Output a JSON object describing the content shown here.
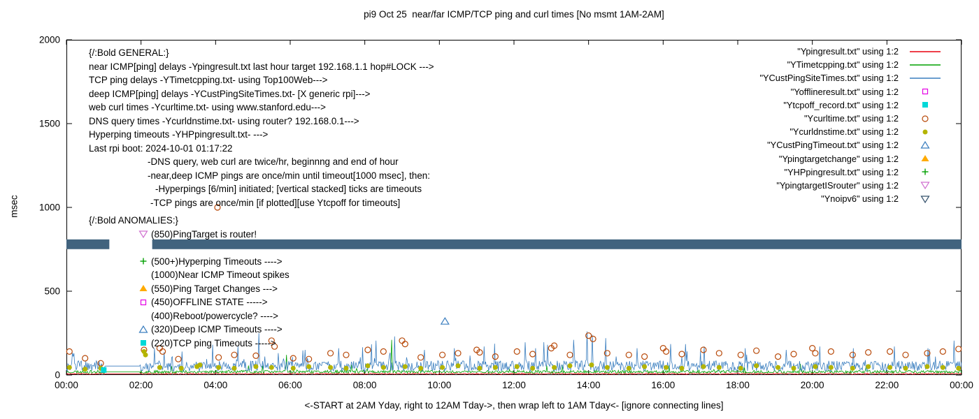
{
  "title": "pi9 Oct 25  near/far ICMP/TCP ping and curl times [No msmt 1AM-2AM]",
  "ylabel": "msec",
  "xlabel": "<-START at 2AM Yday, right to 12AM Tday->, then wrap left to 1AM Tday<- [ignore connecting lines]",
  "legend": [
    {
      "label": "\"Ypingresult.txt\" using 1:2",
      "marker": "line",
      "color": "#e8000e"
    },
    {
      "label": "\"YTimetcpping.txt\" using 1:2",
      "marker": "line",
      "color": "#00a000"
    },
    {
      "label": "\"YCustPingSiteTimes.txt\" using 1:2",
      "marker": "line",
      "color": "#3a7ebf"
    },
    {
      "label": "\"Yofflineresult.txt\" using 1:2",
      "marker": "square-open",
      "color": "#e400e4"
    },
    {
      "label": "\"Ytcpoff_record.txt\" using 1:2",
      "marker": "square-filled",
      "color": "#00d8d8"
    },
    {
      "label": "\"Ycurltime.txt\" using 1:2",
      "marker": "circle-open",
      "color": "#b84a0a"
    },
    {
      "label": "\"Ycurldnstime.txt\" using 1:2",
      "marker": "circle-filled",
      "color": "#b4b400"
    },
    {
      "label": "\"YCustPingTimeout.txt\" using 1:2",
      "marker": "triangle-open",
      "color": "#3a7ebf"
    },
    {
      "label": "\"Ypingtargetchange\" using 1:2",
      "marker": "triangle-filled",
      "color": "#ffaa00"
    },
    {
      "label": "\"YHPpingresult.txt\" using 1:2",
      "marker": "plus",
      "color": "#00a000"
    },
    {
      "label": "\"YpingtargetISrouter\" using 1:2",
      "marker": "nabla-open",
      "color": "#d070d0"
    },
    {
      "label": "\"Ynoipv6\" using 1:2",
      "marker": "nabla-open",
      "color": "#33506b"
    }
  ],
  "general": {
    "lines": [
      {
        "text": "{/:Bold GENERAL:}",
        "indent": 0
      },
      {
        "text": "near ICMP[ping] delays -Ypingresult.txt last hour target 192.168.1.1 hop#LOCK --->",
        "indent": 0
      },
      {
        "text": "TCP ping delays -YTimetcpping.txt- using Top100Web--->",
        "indent": 0
      },
      {
        "text": "deep ICMP[ping] delays -YCustPingSiteTimes.txt- [X generic rpi]--->",
        "indent": 0
      },
      {
        "text": "web curl times -Ycurltime.txt- using www.stanford.edu--->",
        "indent": 0
      },
      {
        "text": "DNS query times -Ycurldnstime.txt- using router? 192.168.0.1--->",
        "indent": 0
      },
      {
        "text": "Hyperping timeouts -YHPpingresult.txt- --->",
        "indent": 0
      },
      {
        "text": "Last rpi boot: 2024-10-01 01:17:22",
        "indent": 0
      },
      {
        "text": "-DNS query, web curl are twice/hr, beginnng and end of hour",
        "indent": 84
      },
      {
        "text": "-near,deep ICMP pings are once/min until timeout[1000 msec], then:",
        "indent": 84
      },
      {
        "text": "-Hyperpings [6/min] initiated; [vertical stacked] ticks are timeouts",
        "indent": 95
      },
      {
        "text": "-TCP pings are once/min [if plotted][use Ytcpoff for timeouts]",
        "indent": 88
      }
    ]
  },
  "anomalies": {
    "header": "{/:Bold ANOMALIES:}",
    "items": [
      {
        "marker": "nabla-open",
        "color": "#d070d0",
        "text": "(850)PingTarget is router!"
      },
      {
        "marker": null,
        "color": null,
        "text": ""
      },
      {
        "marker": "plus",
        "color": "#00a000",
        "text": "(500+)Hyperping Timeouts ---->"
      },
      {
        "marker": null,
        "color": null,
        "text": "(1000)Near ICMP Timeout spikes"
      },
      {
        "marker": "triangle-filled",
        "color": "#ffaa00",
        "text": "(550)Ping Target Changes --->"
      },
      {
        "marker": "square-open",
        "color": "#e400e4",
        "text": "(450)OFFLINE STATE ----->"
      },
      {
        "marker": null,
        "color": null,
        "text": "(400)Reboot/powercycle? ---->"
      },
      {
        "marker": "triangle-open",
        "color": "#3a7ebf",
        "text": "(320)Deep ICMP Timeouts ---->"
      },
      {
        "marker": "square-filled",
        "color": "#00d8d8",
        "text": "(220)TCP ping Timeouts ----->"
      }
    ]
  },
  "chart_data": {
    "type": "mixed-line-scatter",
    "xlim": [
      0,
      24
    ],
    "ylim": [
      0,
      2000
    ],
    "x_tick_step_hours": 2,
    "x_tick_labels": [
      "00:00",
      "02:00",
      "04:00",
      "06:00",
      "08:00",
      "10:00",
      "12:00",
      "14:00",
      "16:00",
      "18:00",
      "20:00",
      "22:00",
      "00:00"
    ],
    "y_ticks": [
      0,
      500,
      1000,
      1500,
      2000
    ],
    "grid": false,
    "legend_position": "top-right",
    "band": {
      "name": "Ynoipv6",
      "y_msec": 780,
      "thickness_msec": 58,
      "segments_hours": [
        [
          0,
          1.15
        ],
        [
          2.3,
          24
        ]
      ],
      "color": "#41637e"
    },
    "lines": [
      {
        "name": "Ypingresult.txt",
        "color": "#e8000e",
        "seed": 11,
        "base": [
          3,
          12
        ],
        "burst_p": 0.01,
        "burst_mul": 1.2,
        "spikes": []
      },
      {
        "name": "YTimetcpping.txt",
        "color": "#00a000",
        "seed": 23,
        "base": [
          10,
          28
        ],
        "burst_p": 0.02,
        "burst_mul": 1.5,
        "spikes": [
          [
            8.72,
            210
          ],
          [
            5.9,
            120
          ]
        ]
      },
      {
        "name": "YCustPingSiteTimes.txt",
        "color": "#3a7ebf",
        "seed": 47,
        "base": [
          22,
          85
        ],
        "burst_p": 0.06,
        "burst_mul": 1.6,
        "spikes": [
          [
            0.2,
            130
          ],
          [
            2.35,
            160
          ],
          [
            3.1,
            140
          ],
          [
            4.6,
            170
          ],
          [
            5.15,
            250
          ],
          [
            6.4,
            150
          ],
          [
            7.3,
            160
          ],
          [
            8.3,
            205
          ],
          [
            8.8,
            230
          ],
          [
            9.6,
            150
          ],
          [
            10.4,
            160
          ],
          [
            11.2,
            170
          ],
          [
            12.3,
            195
          ],
          [
            12.9,
            180
          ],
          [
            13.6,
            210
          ],
          [
            13.95,
            260
          ],
          [
            14.1,
            240
          ],
          [
            14.45,
            220
          ],
          [
            15.3,
            160
          ],
          [
            16.2,
            185
          ],
          [
            17.1,
            170
          ],
          [
            18.2,
            160
          ],
          [
            19.3,
            150
          ],
          [
            20.2,
            170
          ],
          [
            21.1,
            160
          ],
          [
            22.2,
            170
          ],
          [
            23.1,
            160
          ],
          [
            23.8,
            205
          ]
        ]
      }
    ],
    "scatters": [
      {
        "name": "Ycurltime.txt",
        "marker": "circle-open",
        "color": "#b84a0a",
        "points": [
          [
            0.08,
            140
          ],
          [
            0.5,
            100
          ],
          [
            0.92,
            70
          ],
          [
            2.08,
            150
          ],
          [
            2.5,
            160
          ],
          [
            2.58,
            140
          ],
          [
            3.0,
            95
          ],
          [
            4.05,
            1000
          ],
          [
            4.08,
            105
          ],
          [
            4.5,
            120
          ],
          [
            5.08,
            115
          ],
          [
            5.5,
            205
          ],
          [
            5.58,
            170
          ],
          [
            6.08,
            100
          ],
          [
            6.5,
            95
          ],
          [
            7.08,
            130
          ],
          [
            7.5,
            120
          ],
          [
            8.08,
            150
          ],
          [
            8.5,
            140
          ],
          [
            9.0,
            205
          ],
          [
            9.08,
            185
          ],
          [
            9.5,
            105
          ],
          [
            10.08,
            120
          ],
          [
            10.5,
            130
          ],
          [
            11.0,
            150
          ],
          [
            11.08,
            135
          ],
          [
            11.5,
            110
          ],
          [
            12.08,
            140
          ],
          [
            12.5,
            125
          ],
          [
            13.0,
            160
          ],
          [
            13.08,
            175
          ],
          [
            13.5,
            120
          ],
          [
            14.0,
            235
          ],
          [
            14.12,
            215
          ],
          [
            14.5,
            130
          ],
          [
            15.08,
            120
          ],
          [
            15.5,
            110
          ],
          [
            16.0,
            160
          ],
          [
            16.08,
            140
          ],
          [
            16.5,
            125
          ],
          [
            17.08,
            150
          ],
          [
            17.5,
            130
          ],
          [
            18.08,
            120
          ],
          [
            18.5,
            145
          ],
          [
            19.08,
            110
          ],
          [
            19.5,
            125
          ],
          [
            20.0,
            160
          ],
          [
            20.08,
            130
          ],
          [
            20.5,
            140
          ],
          [
            21.08,
            120
          ],
          [
            21.5,
            135
          ],
          [
            22.08,
            140
          ],
          [
            22.5,
            120
          ],
          [
            23.08,
            130
          ],
          [
            23.5,
            140
          ],
          [
            23.92,
            155
          ]
        ]
      },
      {
        "name": "Ycurldnstime.txt",
        "marker": "circle-filled",
        "color": "#b4b400",
        "points": [
          [
            0.08,
            45
          ],
          [
            0.5,
            35
          ],
          [
            0.92,
            40
          ],
          [
            2.08,
            140
          ],
          [
            2.12,
            120
          ],
          [
            2.5,
            45
          ],
          [
            3.08,
            40
          ],
          [
            3.5,
            50
          ],
          [
            3.58,
            60
          ],
          [
            4.08,
            45
          ],
          [
            4.5,
            40
          ],
          [
            5.08,
            50
          ],
          [
            5.5,
            45
          ],
          [
            6.08,
            40
          ],
          [
            6.5,
            50
          ],
          [
            7.08,
            45
          ],
          [
            7.5,
            40
          ],
          [
            8.08,
            55
          ],
          [
            8.5,
            45
          ],
          [
            9.08,
            50
          ],
          [
            9.5,
            40
          ],
          [
            10.08,
            45
          ],
          [
            10.5,
            55
          ],
          [
            11.08,
            40
          ],
          [
            11.5,
            45
          ],
          [
            12.08,
            50
          ],
          [
            12.5,
            40
          ],
          [
            13.08,
            45
          ],
          [
            13.5,
            55
          ],
          [
            14.08,
            60
          ],
          [
            14.5,
            45
          ],
          [
            15.08,
            40
          ],
          [
            15.5,
            50
          ],
          [
            16.08,
            45
          ],
          [
            16.5,
            40
          ],
          [
            17.08,
            50
          ],
          [
            17.5,
            45
          ],
          [
            18.08,
            40
          ],
          [
            18.5,
            55
          ],
          [
            19.08,
            45
          ],
          [
            19.5,
            40
          ],
          [
            20.08,
            50
          ],
          [
            20.5,
            45
          ],
          [
            21.08,
            40
          ],
          [
            21.5,
            50
          ],
          [
            22.08,
            45
          ],
          [
            22.5,
            40
          ],
          [
            23.08,
            50
          ],
          [
            23.5,
            45
          ],
          [
            23.92,
            40
          ]
        ]
      },
      {
        "name": "YCustPingTimeout.txt",
        "marker": "triangle-open",
        "color": "#3a7ebf",
        "points": [
          [
            10.15,
            320
          ]
        ]
      },
      {
        "name": "Ytcpoff_record.txt",
        "marker": "square-filled",
        "color": "#00d8d8",
        "points": [
          [
            1.0,
            30
          ]
        ]
      }
    ]
  }
}
